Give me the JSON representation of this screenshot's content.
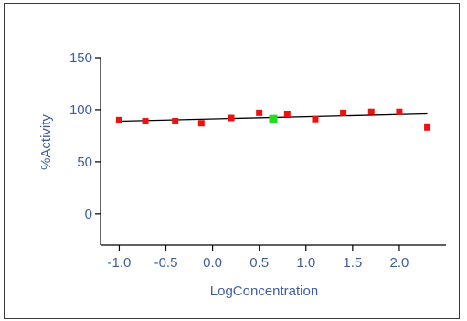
{
  "chart_data": {
    "type": "scatter",
    "title": "",
    "xlabel": "LogConcentration",
    "ylabel": "%Activity",
    "xlim": [
      -1.2,
      2.5
    ],
    "ylim": [
      -30,
      150
    ],
    "x_ticks": [
      -1.0,
      -0.5,
      0.0,
      0.5,
      1.0,
      1.5,
      2.0
    ],
    "x_tick_labels": [
      "-1.0",
      "-0.5",
      "0.0",
      "0.5",
      "1.0",
      "1.5",
      "2.0"
    ],
    "y_ticks": [
      0,
      50,
      100,
      150
    ],
    "y_tick_labels": [
      "0",
      "50",
      "100",
      "150"
    ],
    "grid": false,
    "legend": "none",
    "series": [
      {
        "color": "#ee1111",
        "marker": "square",
        "points": [
          {
            "x": -1.0,
            "y": 90
          },
          {
            "x": -0.72,
            "y": 89
          },
          {
            "x": -0.4,
            "y": 89
          },
          {
            "x": -0.12,
            "y": 87
          },
          {
            "x": 0.2,
            "y": 92
          },
          {
            "x": 0.5,
            "y": 97
          },
          {
            "x": 0.8,
            "y": 96
          },
          {
            "x": 1.1,
            "y": 91
          },
          {
            "x": 1.4,
            "y": 97
          },
          {
            "x": 1.7,
            "y": 98
          },
          {
            "x": 2.0,
            "y": 98
          },
          {
            "x": 2.3,
            "y": 83
          }
        ]
      },
      {
        "color": "#22dd22",
        "marker": "square",
        "points": [
          {
            "x": 0.65,
            "y": 91
          }
        ]
      }
    ],
    "fit_line": {
      "color": "#000000",
      "points": [
        {
          "x": -1.0,
          "y": 89
        },
        {
          "x": 2.3,
          "y": 96
        }
      ]
    }
  }
}
